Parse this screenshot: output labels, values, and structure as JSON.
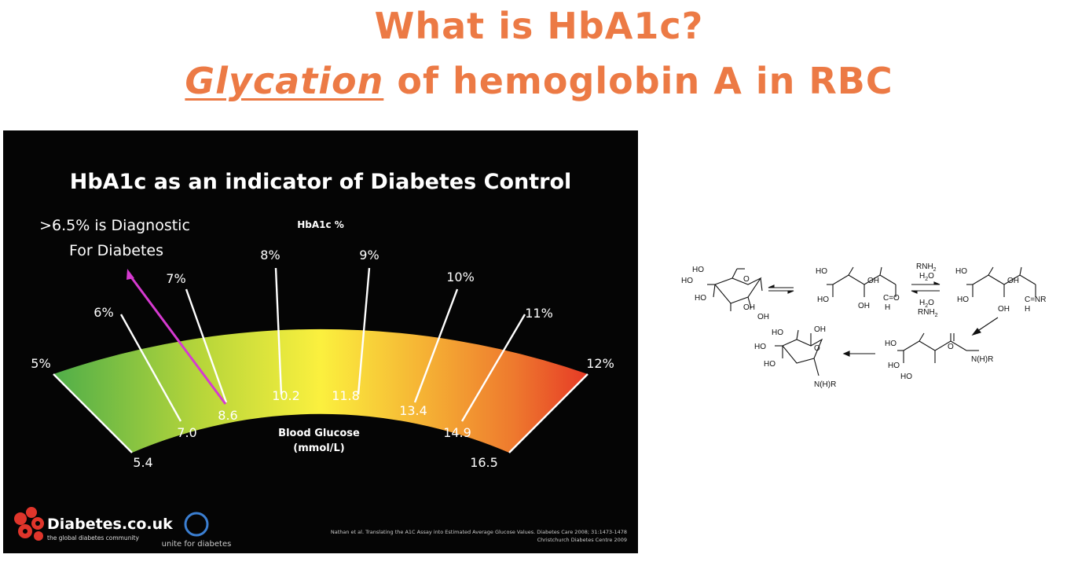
{
  "slide": {
    "title_line1": "What is HbA1c?",
    "title_line2_emph": "Glycation",
    "title_line2_rest": " of hemoglobin A in RBC",
    "accent_color": "#ec7a45"
  },
  "gauge": {
    "title": "HbA1c as an indicator of Diabetes Control",
    "diagnostic_line1": ">6.5% is Diagnostic",
    "diagnostic_line2": "For Diabetes",
    "diagnostic_threshold_pct": 6.5,
    "outer_label": "HbA1c %",
    "inner_label_line1": "Blood Glucose",
    "inner_label_line2": "(mmol/L)",
    "hba1c_ticks": [
      "5%",
      "6%",
      "7%",
      "8%",
      "9%",
      "10%",
      "11%",
      "12%"
    ],
    "glucose_ticks": [
      "5.4",
      "7.0",
      "8.6",
      "10.2",
      "11.8",
      "13.4",
      "14.9",
      "16.5"
    ],
    "colors": {
      "green": "#55b14b",
      "yellow": "#f9ee3e",
      "orange": "#f08a30",
      "red": "#e63a26",
      "arrow": "#d63ad0"
    }
  },
  "footer": {
    "brand": "Diabetes.co.uk",
    "brand_tagline": "the global diabetes community",
    "unite": "unite for diabetes",
    "citation_line1": "Nathan et al. Translating the A1C Assay into Estimated Average Glucose Values. Diabetes Care 2008; 31:1473-1478",
    "citation_line2": "Christchurch Diabetes Centre 2009"
  },
  "reaction": {
    "ho": "HO",
    "oh": "OH",
    "o": "O",
    "cho": "C=O",
    "h": "H",
    "cnr": "C=NR",
    "nhr": "N(H)R",
    "rnh2": "RNH",
    "h2o": "H",
    "sub2": "2",
    "sub_o": "O"
  }
}
